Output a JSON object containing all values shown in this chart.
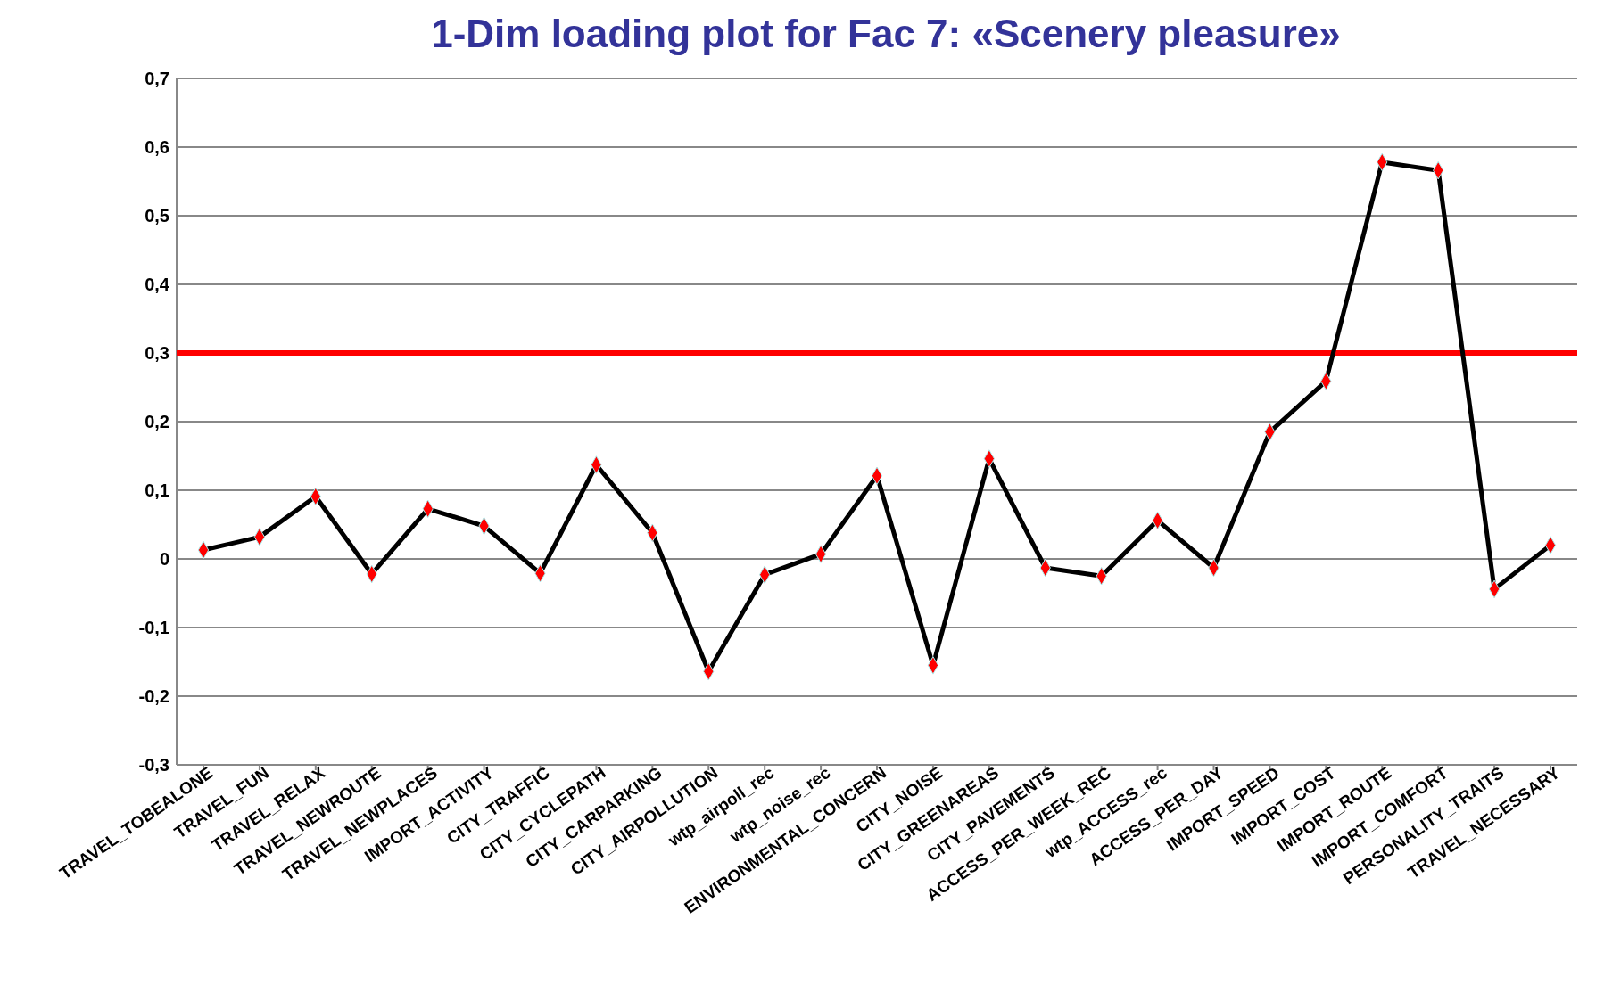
{
  "chart_data": {
    "type": "line",
    "title": "1-Dim loading plot for Fac 7: «Scenery pleasure»",
    "categories": [
      "TRAVEL_TOBEALONE",
      "TRAVEL_FUN",
      "TRAVEL_RELAX",
      "TRAVEL_NEWROUTE",
      "TRAVEL_NEWPLACES",
      "IMPORT_ACTIVITY",
      "CITY_TRAFFIC",
      "CITY_CYCLEPATH",
      "CITY_CARPARKING",
      "CITY_AIRPOLLUTION",
      "wtp_airpoll_rec",
      "wtp_noise_rec",
      "ENVIRONMENTAL_CONCERN",
      "CITY_NOISE",
      "CITY_GREENAREAS",
      "CITY_PAVEMENTS",
      "ACCESS_PER_WEEK_REC",
      "wtp_ACCESS_rec",
      "ACCESS_PER_DAY",
      "IMPORT_SPEED",
      "IMPORT_COST",
      "IMPORT_ROUTE",
      "IMPORT_COMFORT",
      "PERSONALITY_TRAITS",
      "TRAVEL_NECESSARY"
    ],
    "series": [
      {
        "color": "#000000",
        "values": [
          0.013,
          0.032,
          0.091,
          -0.022,
          0.073,
          0.048,
          -0.021,
          0.137,
          0.038,
          -0.164,
          -0.023,
          0.007,
          0.121,
          -0.155,
          0.146,
          -0.013,
          -0.025,
          0.056,
          -0.013,
          0.185,
          0.259,
          0.578,
          0.566,
          -0.044,
          0.02
        ]
      }
    ],
    "marker": "diamond",
    "line_style": "solid",
    "grid": "y",
    "ylim": [
      -0.3,
      0.7
    ],
    "yticks": [
      {
        "value": -0.3,
        "label": "-0,3"
      },
      {
        "value": -0.2,
        "label": "-0,2"
      },
      {
        "value": -0.1,
        "label": "-0,1"
      },
      {
        "value": 0,
        "label": "0"
      },
      {
        "value": 0.1,
        "label": "0,1"
      },
      {
        "value": 0.2,
        "label": "0,2"
      },
      {
        "value": 0.3,
        "label": "0,3"
      },
      {
        "value": 0.4,
        "label": "0,4"
      },
      {
        "value": 0.5,
        "label": "0,5"
      },
      {
        "value": 0.6,
        "label": "0,6"
      },
      {
        "value": 0.7,
        "label": "0,7"
      }
    ],
    "ref_lines": [
      {
        "axis": "y",
        "value": 0.3,
        "color": "#ff0000"
      }
    ]
  }
}
